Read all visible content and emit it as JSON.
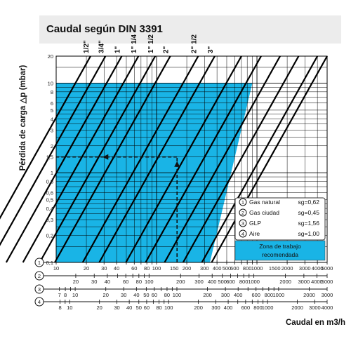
{
  "colors": {
    "band": "#ececec",
    "zone": "#19b4e6",
    "grid": "#000000",
    "line": "#000000"
  },
  "chart_data": {
    "type": "line",
    "title": "Caudal según DIN 3391",
    "xlabel": "Caudal en m3/h",
    "ylabel": "Pérdida de carga △p (mbar)",
    "x_scale": "log",
    "y_scale": "log",
    "xlim": [
      10,
      5000
    ],
    "ylim": [
      0.1,
      20
    ],
    "grid": true,
    "y_ticks": [
      {
        "v": 20,
        "t": "20"
      },
      {
        "v": 10,
        "t": "10"
      },
      {
        "v": 8,
        "t": "8"
      },
      {
        "v": 6,
        "t": "6"
      },
      {
        "v": 5,
        "t": "5"
      },
      {
        "v": 4,
        "t": "4"
      },
      {
        "v": 3,
        "t": "3"
      },
      {
        "v": 2,
        "t": "2"
      },
      {
        "v": 1.5,
        "t": "1,5"
      },
      {
        "v": 1,
        "t": "1"
      },
      {
        "v": 0.8,
        "t": "0,8"
      },
      {
        "v": 0.6,
        "t": "0,6"
      },
      {
        "v": 0.5,
        "t": "0,5"
      },
      {
        "v": 0.4,
        "t": "0,4"
      },
      {
        "v": 0.3,
        "t": "0,3"
      },
      {
        "v": 0.2,
        "t": "0,2"
      },
      {
        "v": 0.1,
        "t": "0,1"
      }
    ],
    "scales": [
      {
        "name": "1",
        "ticks": [
          10,
          20,
          30,
          40,
          50,
          60,
          70,
          80,
          90,
          100,
          200,
          300,
          400,
          500,
          600,
          700,
          800,
          900,
          1000,
          2000,
          3000,
          4000,
          5000
        ],
        "labels": [
          10,
          20,
          30,
          40,
          60,
          80,
          100,
          150,
          200,
          300,
          400,
          500,
          600,
          800,
          1000,
          1500,
          2000,
          3000,
          4000,
          5000
        ]
      },
      {
        "name": "2",
        "ticks": [
          20,
          30,
          40,
          50,
          60,
          70,
          80,
          90,
          100,
          200,
          300,
          400,
          500,
          600,
          700,
          800,
          900,
          1000,
          2000,
          3000,
          4000,
          5000
        ],
        "labels": [
          20,
          30,
          40,
          60,
          80,
          100,
          200,
          300,
          400,
          500,
          600,
          800,
          1000,
          2000,
          3000,
          4000,
          5000
        ]
      },
      {
        "name": "3",
        "ticks": [
          7,
          8,
          9,
          10,
          20,
          30,
          40,
          50,
          60,
          70,
          80,
          90,
          100,
          200,
          300,
          400,
          500,
          600,
          700,
          800,
          900,
          1000,
          2000,
          3000
        ],
        "labels": [
          7,
          8,
          10,
          20,
          30,
          40,
          50,
          60,
          80,
          100,
          200,
          300,
          400,
          600,
          800,
          1000,
          2000,
          3000
        ]
      },
      {
        "name": "4",
        "ticks": [
          8,
          9,
          10,
          20,
          30,
          40,
          50,
          60,
          70,
          80,
          90,
          100,
          200,
          300,
          400,
          500,
          600,
          700,
          800,
          900,
          1000,
          2000,
          3000,
          4000
        ],
        "labels": [
          8,
          10,
          20,
          30,
          40,
          50,
          60,
          80,
          100,
          200,
          300,
          400,
          600,
          800,
          1000,
          2000,
          3000,
          4000
        ]
      }
    ],
    "pipes": [
      {
        "label": "1/2\"",
        "x_at_20": 22,
        "slope": 2
      },
      {
        "label": "3/4\"",
        "x_at_20": 31,
        "slope": 2
      },
      {
        "label": "1\"",
        "x_at_20": 45,
        "slope": 2
      },
      {
        "label": "1\" 1/4",
        "x_at_20": 66,
        "slope": 2
      },
      {
        "label": "1\" 1/2",
        "x_at_20": 97,
        "slope": 2
      },
      {
        "label": "2\"",
        "x_at_20": 137,
        "slope": 2
      },
      {
        "label": "2\" 1/2",
        "x_at_20": 260,
        "slope": 2
      },
      {
        "label": "3\"",
        "x_at_20": 380,
        "slope": 2
      }
    ],
    "extra_lines": [
      {
        "x_at_20": 700,
        "slope": 2
      },
      {
        "x_at_20": 1100,
        "slope": 2
      },
      {
        "x_at_20": 1700,
        "slope": 2
      },
      {
        "x_at_20": 2600,
        "slope": 2
      },
      {
        "x_at_20": 4000,
        "slope": 2
      },
      {
        "x_at_20": 5000,
        "slope": 2
      }
    ],
    "zone": {
      "ymax": 10,
      "ymin": 0.1,
      "xmin": 10,
      "boundary_x_at_10": 900,
      "boundary_x_at_0_1": 340
    },
    "example": {
      "x": 160,
      "y": 1.5
    },
    "legend": [
      {
        "num": "1",
        "name": "Gas natural",
        "sg": "sg=0,62"
      },
      {
        "num": "2",
        "name": "Gas ciudad",
        "sg": "sg=0,45"
      },
      {
        "num": "3",
        "name": "GLP",
        "sg": "sg=1,56"
      },
      {
        "num": "4",
        "name": "Aire",
        "sg": "sg=1,00"
      }
    ],
    "zone_label": "Zona de trabajo recomendada",
    "legend_placement": "lower-right"
  }
}
